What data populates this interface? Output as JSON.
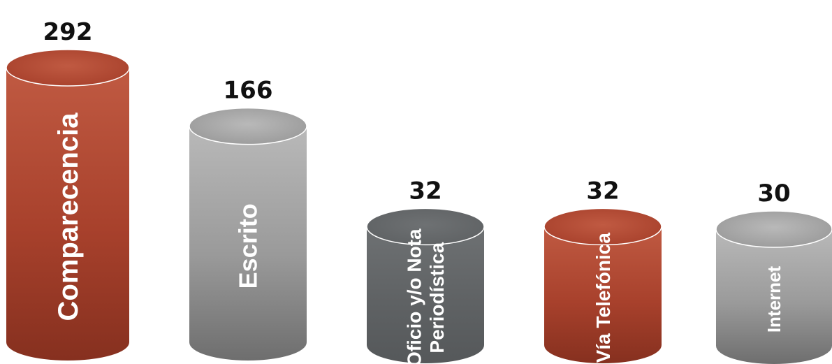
{
  "chart_data": {
    "type": "bar",
    "style": "3d-cylinder",
    "categories": [
      "Comparecencia",
      "Escrito",
      "Oficio y/o Nota Periodística",
      "Vía Telefónica",
      "Internet"
    ],
    "category_lines": [
      [
        "Comparecencia"
      ],
      [
        "Escrito"
      ],
      [
        "Oficio y/o Nota",
        "Periodística"
      ],
      [
        "Vía Telefónica"
      ],
      [
        "Internet"
      ]
    ],
    "values": [
      292,
      166,
      32,
      32,
      30
    ],
    "value_labels": [
      "292",
      "166",
      "32",
      "32",
      "30"
    ],
    "colors": [
      "red",
      "lightgray",
      "darkgray",
      "red",
      "lightgray"
    ],
    "palette": {
      "red": {
        "light": "#c05a42",
        "mid": "#a8412c",
        "dark": "#86301f"
      },
      "lightgray": {
        "light": "#b9b9b9",
        "mid": "#9a9a9a",
        "dark": "#6e6e6e"
      },
      "darkgray": {
        "light": "#6e7173",
        "mid": "#5f6264",
        "dark": "#55585a"
      }
    },
    "title": "",
    "xlabel": "",
    "ylabel": "",
    "grid": false,
    "legend": "none"
  }
}
